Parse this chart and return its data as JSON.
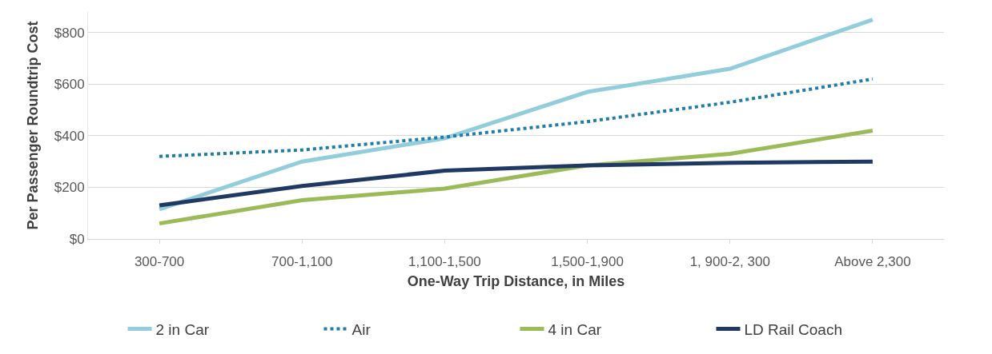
{
  "chart_data": {
    "type": "line",
    "xlabel": "One-Way Trip Distance, in Miles",
    "ylabel": "Per Passenger Roundtrip Cost",
    "categories": [
      "300-700",
      "700-1,100",
      "1,100-1,500",
      "1,500-1,900",
      "1, 900-2, 300",
      "Above 2,300"
    ],
    "series": [
      {
        "name": "2 in Car",
        "color": "#92cddc",
        "values": [
          115,
          300,
          390,
          570,
          660,
          850
        ]
      },
      {
        "name": "Air",
        "color": "#1f7ea8",
        "line_style": "dotted",
        "values": [
          320,
          345,
          395,
          455,
          530,
          620
        ]
      },
      {
        "name": "4 in Car",
        "color": "#9bbb59",
        "values": [
          60,
          150,
          195,
          285,
          330,
          420
        ]
      },
      {
        "name": "LD Rail Coach",
        "color": "#203864",
        "values": [
          130,
          205,
          265,
          285,
          295,
          300
        ]
      }
    ],
    "ylim": [
      0,
      880
    ],
    "yticks": [
      {
        "value": 0,
        "label": "$0"
      },
      {
        "value": 200,
        "label": "$200"
      },
      {
        "value": 400,
        "label": "$400"
      },
      {
        "value": 600,
        "label": "$600"
      },
      {
        "value": 800,
        "label": "$800"
      }
    ],
    "grid": "y",
    "legend": "bottom",
    "marker": "none"
  }
}
